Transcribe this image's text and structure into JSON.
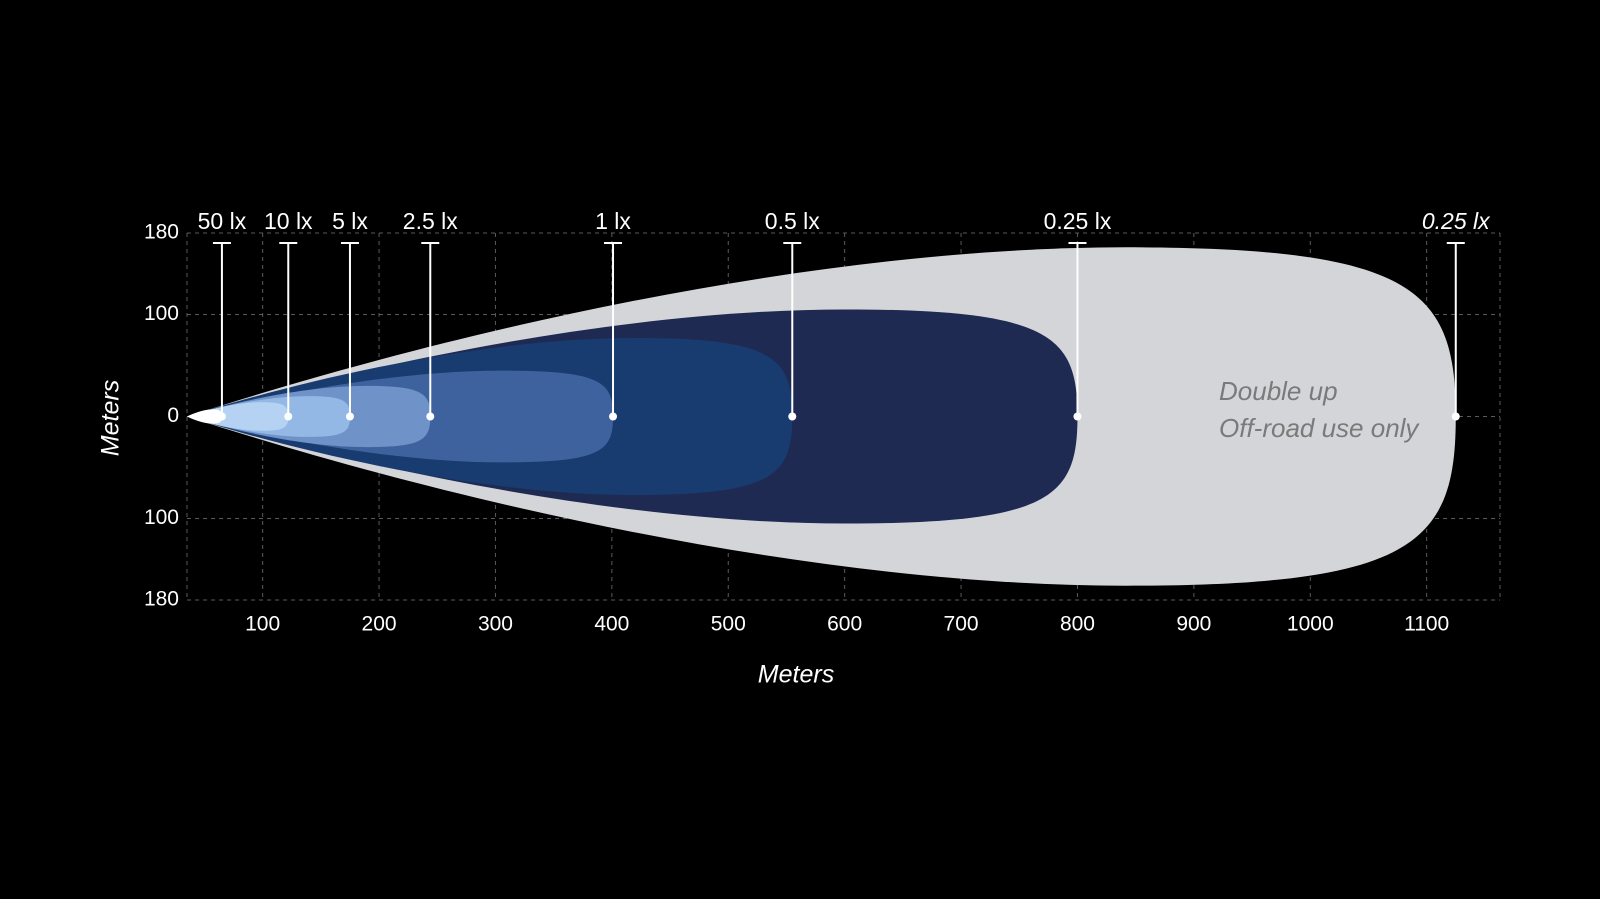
{
  "chart_data": {
    "type": "beam",
    "x_label": "Meters",
    "y_label": "Meters",
    "xlim": [
      35,
      1163
    ],
    "ylim": [
      -180,
      180
    ],
    "xticks": [
      100,
      200,
      300,
      400,
      500,
      600,
      700,
      800,
      900,
      1000,
      1100
    ],
    "yticks": [
      {
        "value": 180,
        "label": "180"
      },
      {
        "value": 100,
        "label": "100"
      },
      0,
      {
        "value": -100,
        "label": "100"
      },
      {
        "value": -180,
        "label": "180"
      }
    ],
    "grid": true,
    "series": [
      {
        "name": "50 lx",
        "color": "#ffffff",
        "reach": 65,
        "half_width": 7
      },
      {
        "name": "10 lx",
        "color": "#b6d2f2",
        "reach": 122,
        "half_width": 14
      },
      {
        "name": "5 lx",
        "color": "#93b8e6",
        "reach": 175,
        "half_width": 20
      },
      {
        "name": "2.5 lx",
        "color": "#6f93c8",
        "reach": 244,
        "half_width": 30
      },
      {
        "name": "1 lx",
        "color": "#3d629e",
        "reach": 401,
        "half_width": 45
      },
      {
        "name": "0.5 lx",
        "color": "#183c70",
        "reach": 555,
        "half_width": 77
      },
      {
        "name": "0.25 lx",
        "color": "#1f2a52",
        "reach": 800,
        "half_width": 105
      },
      {
        "name": "0.25 lx",
        "color": "#d4d5d8",
        "reach": 1125,
        "half_width": 166,
        "italic": true
      }
    ],
    "annotation": [
      "Double up",
      "Off-road use only"
    ]
  }
}
